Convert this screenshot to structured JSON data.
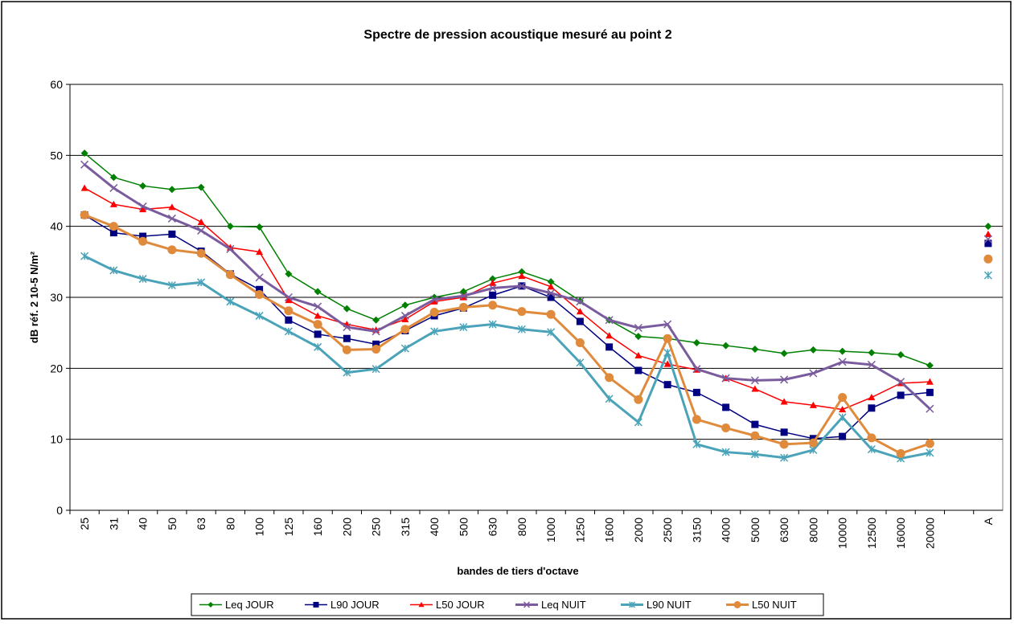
{
  "chart_data": {
    "type": "line",
    "title": "Spectre de pression acoustique mesuré au point 2",
    "x_label": "bandes de tiers d'octave",
    "y_label": "dB réf. 2 10-5 N/m²",
    "categories": [
      "25",
      "31",
      "40",
      "50",
      "63",
      "80",
      "100",
      "125",
      "160",
      "200",
      "250",
      "315",
      "400",
      "500",
      "630",
      "800",
      "1000",
      "1250",
      "1600",
      "2000",
      "2500",
      "3150",
      "4000",
      "5000",
      "6300",
      "8000",
      "10000",
      "12500",
      "16000",
      "20000",
      null,
      "A"
    ],
    "ylim": [
      0,
      60
    ],
    "yticks": [
      0,
      10,
      20,
      30,
      40,
      50,
      60
    ],
    "grid": true,
    "legend": "bottom",
    "series": [
      {
        "name": "Leq JOUR",
        "color": "#008000",
        "marker": "diamond",
        "values": [
          50.3,
          46.9,
          45.7,
          45.2,
          45.5,
          40.0,
          39.9,
          33.3,
          30.8,
          28.4,
          26.8,
          28.9,
          30.0,
          30.8,
          32.6,
          33.6,
          32.2,
          29.5,
          26.8,
          24.5,
          24.2,
          23.6,
          23.2,
          22.7,
          22.1,
          22.6,
          22.4,
          22.2,
          21.9,
          20.4,
          null,
          40.0
        ]
      },
      {
        "name": "L90 JOUR",
        "color": "#000080",
        "marker": "square",
        "values": [
          41.6,
          39.1,
          38.6,
          38.9,
          36.5,
          33.3,
          31.1,
          26.8,
          24.8,
          24.2,
          23.4,
          25.3,
          27.4,
          28.5,
          30.3,
          31.6,
          30.0,
          26.6,
          23.0,
          19.7,
          17.7,
          16.6,
          14.5,
          12.1,
          11.0,
          10.1,
          10.4,
          14.4,
          16.2,
          16.6,
          null,
          37.6
        ]
      },
      {
        "name": "L50 JOUR",
        "color": "#ff0000",
        "marker": "triangle",
        "values": [
          45.4,
          43.1,
          42.4,
          42.7,
          40.6,
          37.0,
          36.4,
          29.6,
          27.4,
          26.2,
          25.4,
          26.9,
          29.4,
          30.0,
          32.0,
          33.0,
          31.5,
          28.0,
          24.6,
          21.8,
          20.6,
          19.8,
          18.6,
          17.1,
          15.3,
          14.8,
          14.2,
          15.9,
          17.9,
          18.1,
          null,
          38.9
        ]
      },
      {
        "name": "Leq NUIT",
        "color": "#7a5c9e",
        "marker": "x",
        "values": [
          48.7,
          45.4,
          42.8,
          41.1,
          39.4,
          36.8,
          32.8,
          30.0,
          28.7,
          25.8,
          25.2,
          27.4,
          29.7,
          30.2,
          31.3,
          31.6,
          30.6,
          29.4,
          26.8,
          25.7,
          26.2,
          19.9,
          18.6,
          18.3,
          18.4,
          19.3,
          20.9,
          20.5,
          18.1,
          14.3,
          null,
          38.2
        ]
      },
      {
        "name": "L90 NUIT",
        "color": "#4aa3b8",
        "marker": "star",
        "values": [
          35.8,
          33.8,
          32.6,
          31.7,
          32.1,
          29.4,
          27.4,
          25.2,
          23.0,
          19.4,
          19.9,
          22.8,
          25.2,
          25.8,
          26.2,
          25.5,
          25.1,
          20.8,
          15.7,
          12.4,
          22.2,
          9.3,
          8.2,
          7.9,
          7.4,
          8.5,
          13.1,
          8.6,
          7.3,
          8.1,
          null,
          33.1
        ]
      },
      {
        "name": "L50 NUIT",
        "color": "#e08a3c",
        "marker": "circle",
        "values": [
          41.6,
          40.0,
          37.9,
          36.7,
          36.2,
          33.2,
          30.4,
          28.1,
          26.2,
          22.6,
          22.7,
          25.5,
          27.9,
          28.6,
          28.9,
          28.0,
          27.6,
          23.6,
          18.7,
          15.6,
          24.2,
          12.8,
          11.6,
          10.5,
          9.3,
          9.5,
          15.9,
          10.2,
          8.0,
          9.4,
          null,
          35.4
        ]
      }
    ]
  }
}
